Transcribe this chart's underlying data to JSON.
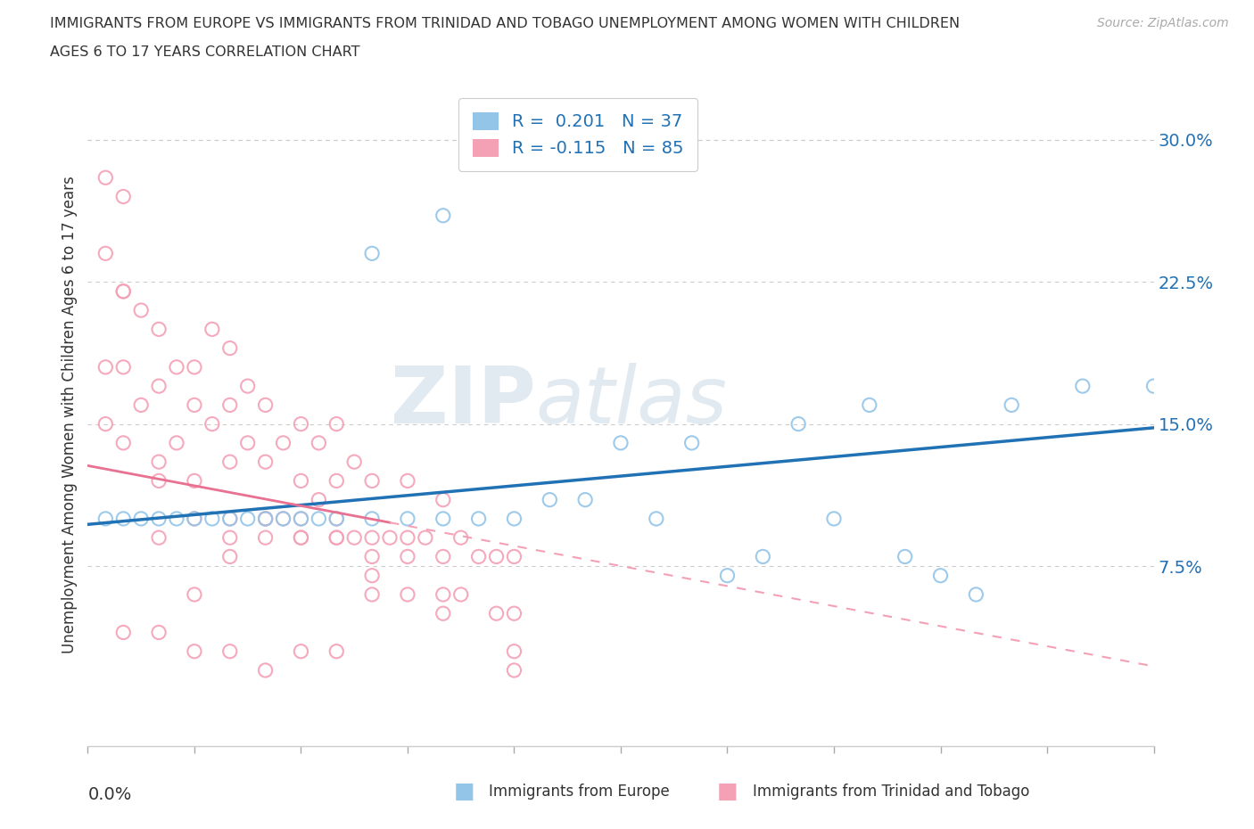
{
  "title_line1": "IMMIGRANTS FROM EUROPE VS IMMIGRANTS FROM TRINIDAD AND TOBAGO UNEMPLOYMENT AMONG WOMEN WITH CHILDREN",
  "title_line2": "AGES 6 TO 17 YEARS CORRELATION CHART",
  "source": "Source: ZipAtlas.com",
  "ylabel": "Unemployment Among Women with Children Ages 6 to 17 years",
  "yticks": [
    "7.5%",
    "15.0%",
    "22.5%",
    "30.0%"
  ],
  "ytick_vals": [
    0.075,
    0.15,
    0.225,
    0.3
  ],
  "xlim": [
    0.0,
    0.3
  ],
  "ylim": [
    -0.02,
    0.33
  ],
  "R_europe": 0.201,
  "N_europe": 37,
  "R_tt": -0.115,
  "N_tt": 85,
  "color_europe": "#93c5e8",
  "color_tt": "#f4a0b5",
  "color_europe_line": "#2171b5",
  "color_tt_line": "#e87090",
  "color_tt_dashed": "#f4a0b5",
  "watermark_zip": "ZIP",
  "watermark_atlas": "atlas",
  "europe_x": [
    0.005,
    0.01,
    0.015,
    0.02,
    0.025,
    0.03,
    0.035,
    0.04,
    0.045,
    0.05,
    0.055,
    0.06,
    0.065,
    0.07,
    0.08,
    0.09,
    0.1,
    0.11,
    0.12,
    0.13,
    0.14,
    0.15,
    0.16,
    0.17,
    0.18,
    0.19,
    0.2,
    0.21,
    0.22,
    0.23,
    0.24,
    0.25,
    0.26,
    0.28,
    0.3,
    0.1,
    0.08
  ],
  "europe_y": [
    0.1,
    0.1,
    0.1,
    0.1,
    0.1,
    0.1,
    0.1,
    0.1,
    0.1,
    0.1,
    0.1,
    0.1,
    0.1,
    0.1,
    0.1,
    0.1,
    0.1,
    0.1,
    0.1,
    0.11,
    0.11,
    0.14,
    0.1,
    0.14,
    0.07,
    0.08,
    0.15,
    0.1,
    0.16,
    0.08,
    0.07,
    0.06,
    0.16,
    0.17,
    0.17,
    0.26,
    0.24
  ],
  "tt_x": [
    0.005,
    0.005,
    0.01,
    0.01,
    0.01,
    0.01,
    0.015,
    0.015,
    0.02,
    0.02,
    0.02,
    0.02,
    0.025,
    0.025,
    0.03,
    0.03,
    0.03,
    0.035,
    0.035,
    0.04,
    0.04,
    0.04,
    0.04,
    0.045,
    0.045,
    0.05,
    0.05,
    0.05,
    0.055,
    0.055,
    0.06,
    0.06,
    0.06,
    0.065,
    0.065,
    0.07,
    0.07,
    0.07,
    0.075,
    0.075,
    0.08,
    0.08,
    0.08,
    0.085,
    0.09,
    0.09,
    0.09,
    0.095,
    0.1,
    0.1,
    0.1,
    0.105,
    0.105,
    0.11,
    0.115,
    0.115,
    0.12,
    0.12,
    0.005,
    0.005,
    0.01,
    0.02,
    0.03,
    0.04,
    0.05,
    0.06,
    0.07,
    0.08,
    0.09,
    0.1,
    0.03,
    0.04,
    0.05,
    0.06,
    0.07,
    0.08,
    0.01,
    0.02,
    0.03,
    0.04,
    0.05,
    0.06,
    0.07,
    0.12,
    0.12
  ],
  "tt_y": [
    0.28,
    0.24,
    0.27,
    0.22,
    0.18,
    0.14,
    0.21,
    0.16,
    0.2,
    0.17,
    0.13,
    0.09,
    0.18,
    0.14,
    0.18,
    0.16,
    0.12,
    0.2,
    0.15,
    0.19,
    0.16,
    0.13,
    0.1,
    0.17,
    0.14,
    0.16,
    0.13,
    0.1,
    0.14,
    0.1,
    0.15,
    0.12,
    0.09,
    0.14,
    0.11,
    0.15,
    0.12,
    0.09,
    0.13,
    0.09,
    0.12,
    0.09,
    0.06,
    0.09,
    0.12,
    0.09,
    0.06,
    0.09,
    0.11,
    0.08,
    0.05,
    0.09,
    0.06,
    0.08,
    0.08,
    0.05,
    0.08,
    0.05,
    0.15,
    0.18,
    0.22,
    0.12,
    0.1,
    0.09,
    0.1,
    0.1,
    0.1,
    0.08,
    0.08,
    0.06,
    0.06,
    0.08,
    0.09,
    0.09,
    0.09,
    0.07,
    0.04,
    0.04,
    0.03,
    0.03,
    0.02,
    0.03,
    0.03,
    0.03,
    0.02
  ]
}
